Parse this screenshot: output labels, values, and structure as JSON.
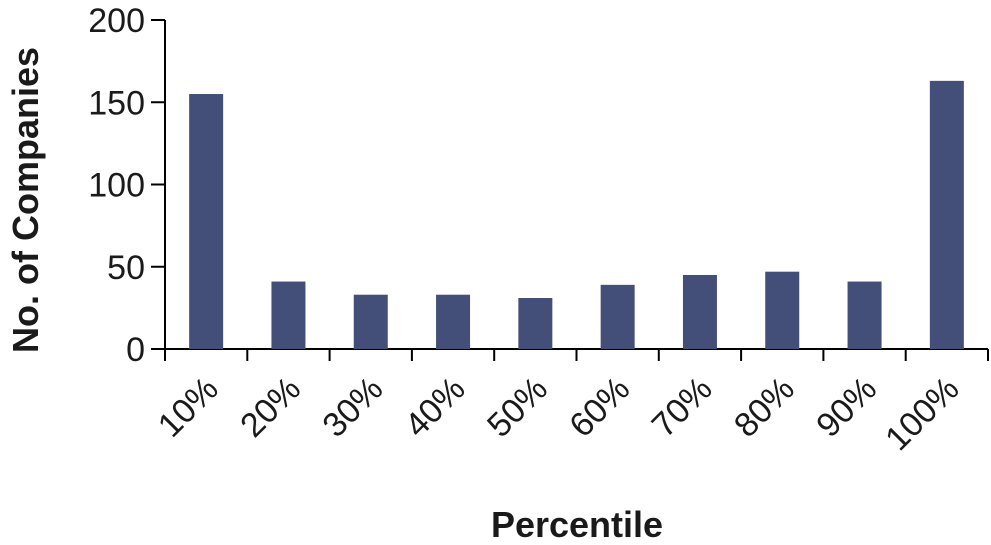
{
  "chart_data": {
    "type": "bar",
    "title": "",
    "xlabel": "Percentile",
    "ylabel": "No. of Companies",
    "categories": [
      "10%",
      "20%",
      "30%",
      "40%",
      "50%",
      "60%",
      "70%",
      "80%",
      "90%",
      "100%"
    ],
    "values": [
      155,
      41,
      33,
      33,
      31,
      39,
      45,
      47,
      41,
      163
    ],
    "ylim": [
      0,
      200
    ],
    "yticks": [
      "0",
      "50",
      "100",
      "150",
      "200"
    ],
    "grid": false,
    "colors": {
      "bar": "#434f78",
      "axis": "#000000",
      "text": "#1a1a1a"
    }
  }
}
